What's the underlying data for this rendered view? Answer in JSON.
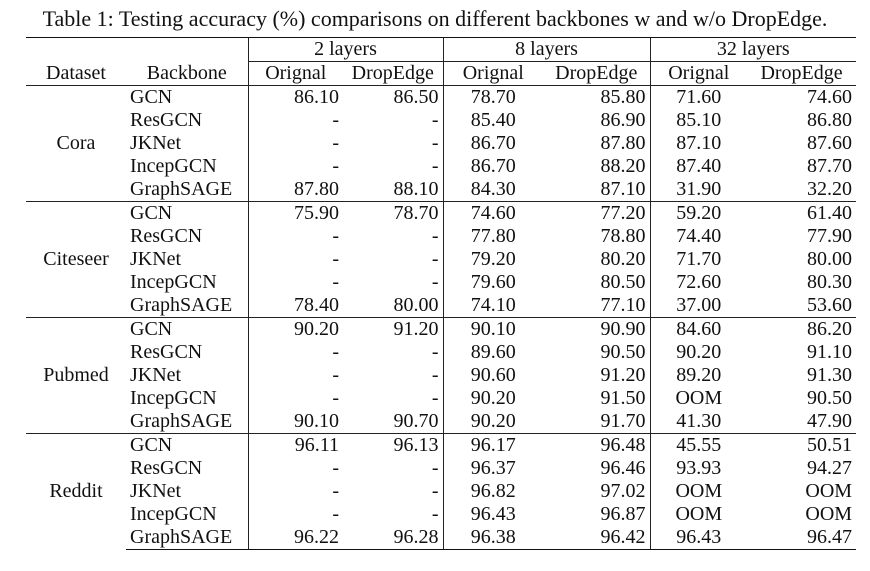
{
  "caption": "Table 1: Testing accuracy (%) comparisons on different backbones w and w/o DropEdge.",
  "headers": {
    "dataset": "Dataset",
    "backbone": "Backbone",
    "groups": [
      "2 layers",
      "8 layers",
      "32 layers"
    ],
    "sub": [
      "Orignal",
      "DropEdge"
    ]
  },
  "datasets": [
    {
      "name": "Cora",
      "rows": [
        {
          "backbone": "GCN",
          "v": [
            "86.10",
            "86.50",
            "78.70",
            "85.80",
            "71.60",
            "74.60"
          ]
        },
        {
          "backbone": "ResGCN",
          "v": [
            "-",
            "-",
            "85.40",
            "86.90",
            "85.10",
            "86.80"
          ]
        },
        {
          "backbone": "JKNet",
          "v": [
            "-",
            "-",
            "86.70",
            "87.80",
            "87.10",
            "87.60"
          ]
        },
        {
          "backbone": "IncepGCN",
          "v": [
            "-",
            "-",
            "86.70",
            "88.20",
            "87.40",
            "87.70"
          ]
        },
        {
          "backbone": "GraphSAGE",
          "v": [
            "87.80",
            "88.10",
            "84.30",
            "87.10",
            "31.90",
            "32.20"
          ]
        }
      ]
    },
    {
      "name": "Citeseer",
      "rows": [
        {
          "backbone": "GCN",
          "v": [
            "75.90",
            "78.70",
            "74.60",
            "77.20",
            "59.20",
            "61.40"
          ]
        },
        {
          "backbone": "ResGCN",
          "v": [
            "-",
            "-",
            "77.80",
            "78.80",
            "74.40",
            "77.90"
          ]
        },
        {
          "backbone": "JKNet",
          "v": [
            "-",
            "-",
            "79.20",
            "80.20",
            "71.70",
            "80.00"
          ]
        },
        {
          "backbone": "IncepGCN",
          "v": [
            "-",
            "-",
            "79.60",
            "80.50",
            "72.60",
            "80.30"
          ]
        },
        {
          "backbone": "GraphSAGE",
          "v": [
            "78.40",
            "80.00",
            "74.10",
            "77.10",
            "37.00",
            "53.60"
          ]
        }
      ]
    },
    {
      "name": "Pubmed",
      "rows": [
        {
          "backbone": "GCN",
          "v": [
            "90.20",
            "91.20",
            "90.10",
            "90.90",
            "84.60",
            "86.20"
          ]
        },
        {
          "backbone": "ResGCN",
          "v": [
            "-",
            "-",
            "89.60",
            "90.50",
            "90.20",
            "91.10"
          ]
        },
        {
          "backbone": "JKNet",
          "v": [
            "-",
            "-",
            "90.60",
            "91.20",
            "89.20",
            "91.30"
          ]
        },
        {
          "backbone": "IncepGCN",
          "v": [
            "-",
            "-",
            "90.20",
            "91.50",
            "OOM",
            "90.50"
          ]
        },
        {
          "backbone": "GraphSAGE",
          "v": [
            "90.10",
            "90.70",
            "90.20",
            "91.70",
            "41.30",
            "47.90"
          ]
        }
      ]
    },
    {
      "name": "Reddit",
      "rows": [
        {
          "backbone": "GCN",
          "v": [
            "96.11",
            "96.13",
            "96.17",
            "96.48",
            "45.55",
            "50.51"
          ]
        },
        {
          "backbone": "ResGCN",
          "v": [
            "-",
            "-",
            "96.37",
            "96.46",
            "93.93",
            "94.27"
          ]
        },
        {
          "backbone": "JKNet",
          "v": [
            "-",
            "-",
            "96.82",
            "97.02",
            "OOM",
            "OOM"
          ]
        },
        {
          "backbone": "IncepGCN",
          "v": [
            "-",
            "-",
            "96.43",
            "96.87",
            "OOM",
            "OOM"
          ]
        },
        {
          "backbone": "GraphSAGE",
          "v": [
            "96.22",
            "96.28",
            "96.38",
            "96.42",
            "96.43",
            "96.47"
          ]
        }
      ]
    }
  ]
}
